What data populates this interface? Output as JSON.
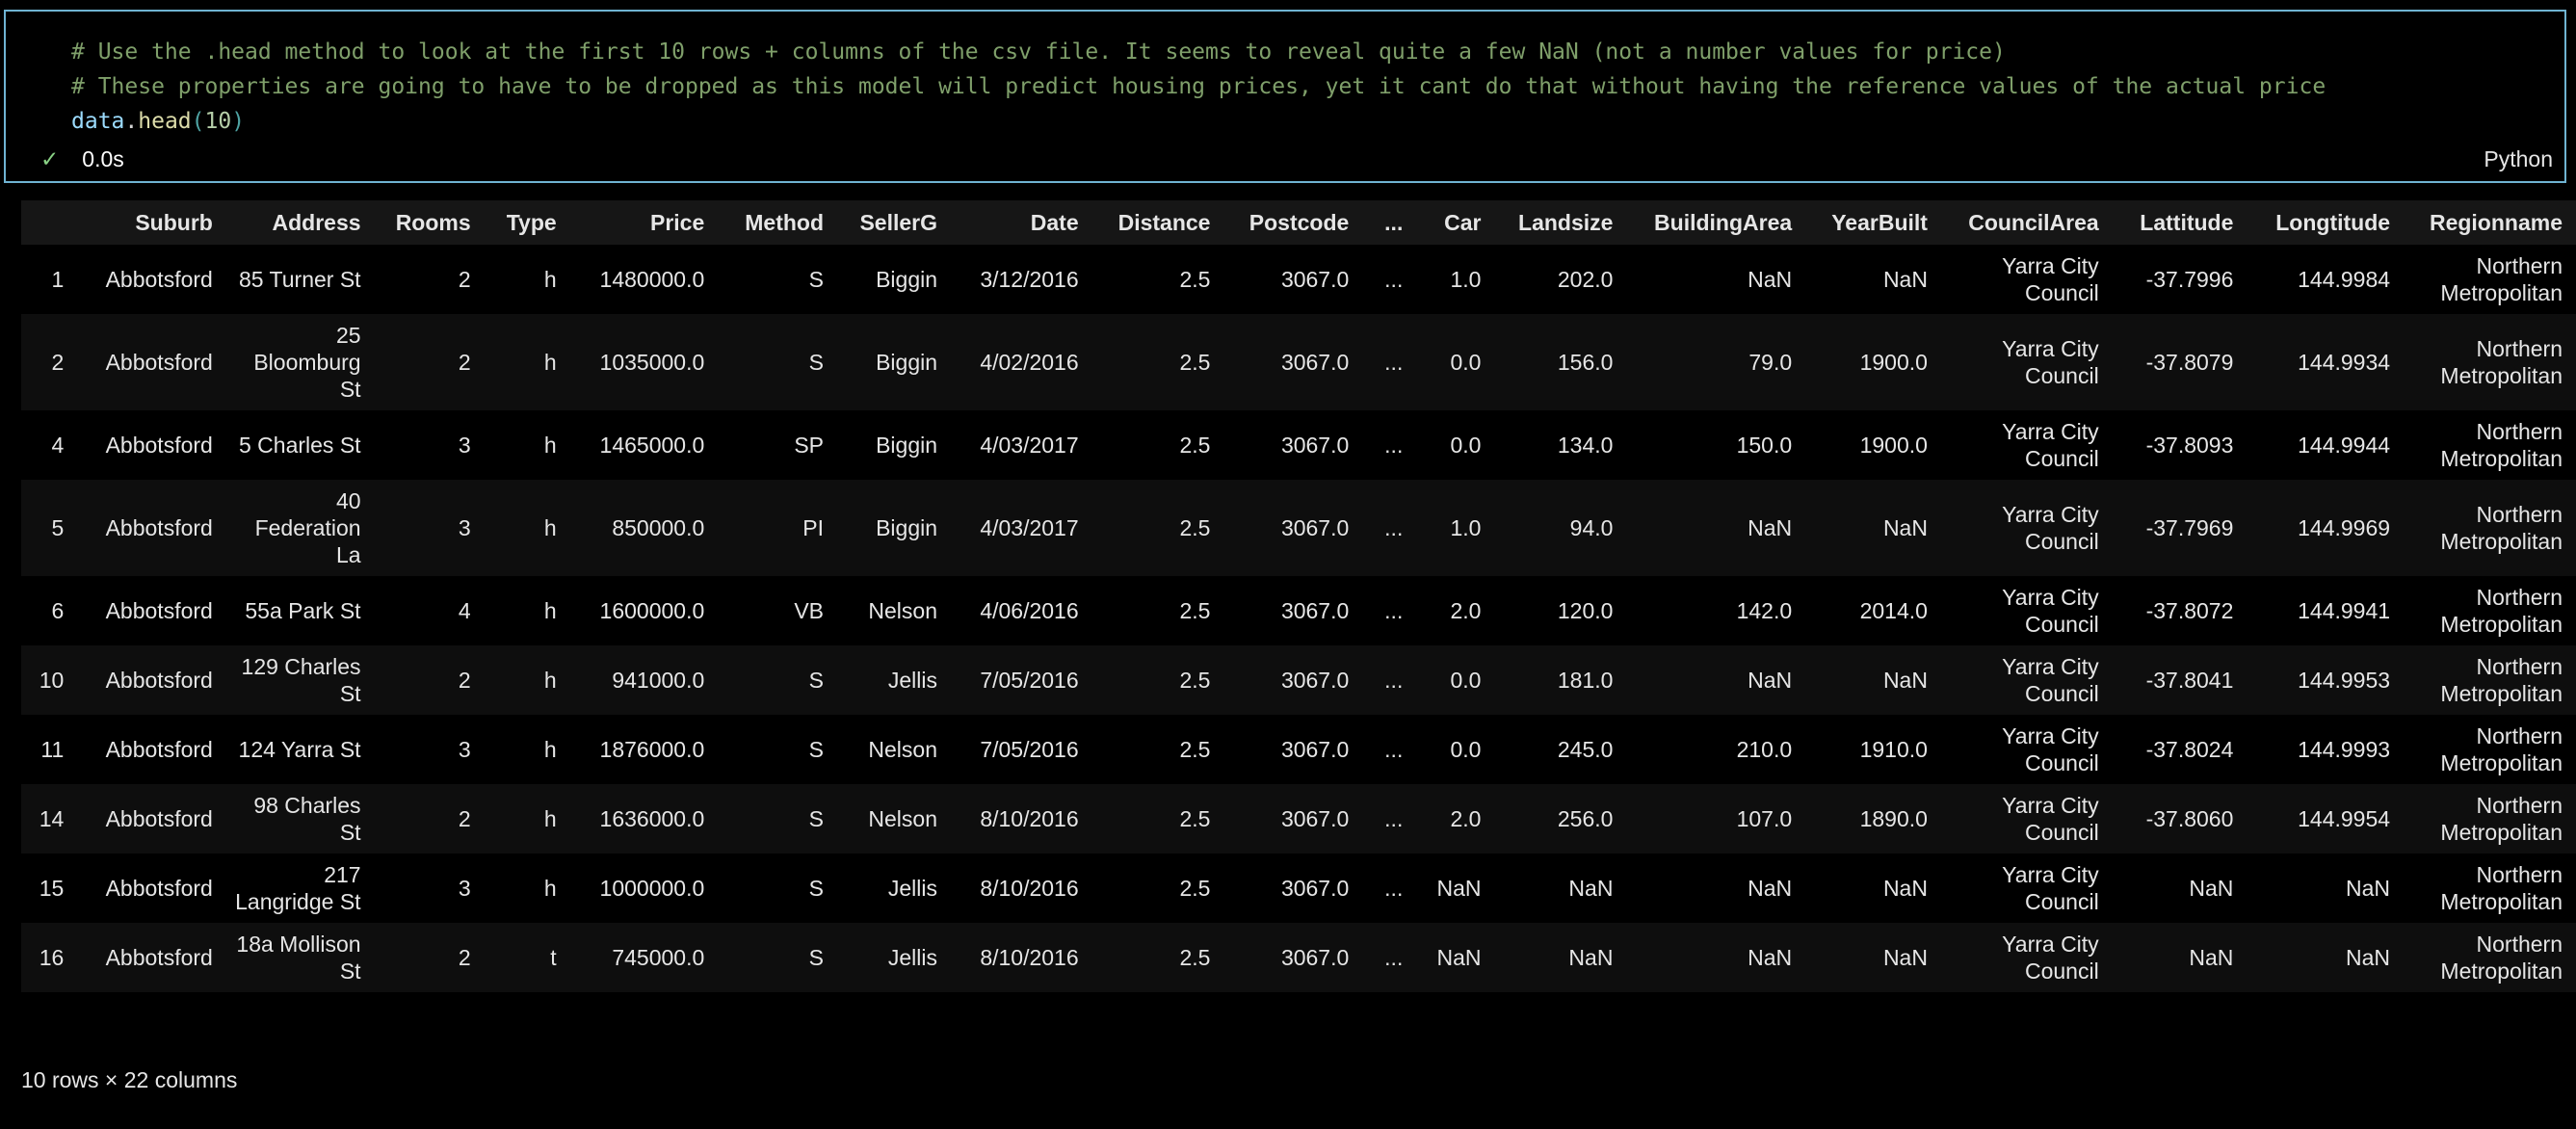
{
  "cell": {
    "code_lines": [
      "# Use the .head method to look at the first 10 rows + columns of the csv file. It seems to reveal quite a few NaN (not a number values for price)",
      "# These properties are going to have to be dropped as this model will predict housing prices, yet it cant do that without having the reference values of the actual price"
    ],
    "code_var": "data",
    "code_dot": ".",
    "code_fn": "head",
    "code_open": "(",
    "code_arg": "10",
    "code_close": ")",
    "status_icon": "check-icon",
    "status_check": "✓",
    "exec_time": "0.0s",
    "language": "Python",
    "border_color": "#6fb3d2"
  },
  "table": {
    "columns": [
      "",
      "Suburb",
      "Address",
      "Rooms",
      "Type",
      "Price",
      "Method",
      "SellerG",
      "Date",
      "Distance",
      "Postcode",
      "...",
      "Car",
      "Landsize",
      "BuildingArea",
      "YearBuilt",
      "CouncilArea",
      "Lattitude",
      "Longtitude",
      "Regionname"
    ],
    "rows": [
      [
        "1",
        "Abbotsford",
        "85 Turner St",
        "2",
        "h",
        "1480000.0",
        "S",
        "Biggin",
        "3/12/2016",
        "2.5",
        "3067.0",
        "...",
        "1.0",
        "202.0",
        "NaN",
        "NaN",
        "Yarra City Council",
        "-37.7996",
        "144.9984",
        "Northern Metropolitan"
      ],
      [
        "2",
        "Abbotsford",
        "25 Bloomburg St",
        "2",
        "h",
        "1035000.0",
        "S",
        "Biggin",
        "4/02/2016",
        "2.5",
        "3067.0",
        "...",
        "0.0",
        "156.0",
        "79.0",
        "1900.0",
        "Yarra City Council",
        "-37.8079",
        "144.9934",
        "Northern Metropolitan"
      ],
      [
        "4",
        "Abbotsford",
        "5 Charles St",
        "3",
        "h",
        "1465000.0",
        "SP",
        "Biggin",
        "4/03/2017",
        "2.5",
        "3067.0",
        "...",
        "0.0",
        "134.0",
        "150.0",
        "1900.0",
        "Yarra City Council",
        "-37.8093",
        "144.9944",
        "Northern Metropolitan"
      ],
      [
        "5",
        "Abbotsford",
        "40 Federation La",
        "3",
        "h",
        "850000.0",
        "PI",
        "Biggin",
        "4/03/2017",
        "2.5",
        "3067.0",
        "...",
        "1.0",
        "94.0",
        "NaN",
        "NaN",
        "Yarra City Council",
        "-37.7969",
        "144.9969",
        "Northern Metropolitan"
      ],
      [
        "6",
        "Abbotsford",
        "55a Park St",
        "4",
        "h",
        "1600000.0",
        "VB",
        "Nelson",
        "4/06/2016",
        "2.5",
        "3067.0",
        "...",
        "2.0",
        "120.0",
        "142.0",
        "2014.0",
        "Yarra City Council",
        "-37.8072",
        "144.9941",
        "Northern Metropolitan"
      ],
      [
        "10",
        "Abbotsford",
        "129 Charles St",
        "2",
        "h",
        "941000.0",
        "S",
        "Jellis",
        "7/05/2016",
        "2.5",
        "3067.0",
        "...",
        "0.0",
        "181.0",
        "NaN",
        "NaN",
        "Yarra City Council",
        "-37.8041",
        "144.9953",
        "Northern Metropolitan"
      ],
      [
        "11",
        "Abbotsford",
        "124 Yarra St",
        "3",
        "h",
        "1876000.0",
        "S",
        "Nelson",
        "7/05/2016",
        "2.5",
        "3067.0",
        "...",
        "0.0",
        "245.0",
        "210.0",
        "1910.0",
        "Yarra City Council",
        "-37.8024",
        "144.9993",
        "Northern Metropolitan"
      ],
      [
        "14",
        "Abbotsford",
        "98 Charles St",
        "2",
        "h",
        "1636000.0",
        "S",
        "Nelson",
        "8/10/2016",
        "2.5",
        "3067.0",
        "...",
        "2.0",
        "256.0",
        "107.0",
        "1890.0",
        "Yarra City Council",
        "-37.8060",
        "144.9954",
        "Northern Metropolitan"
      ],
      [
        "15",
        "Abbotsford",
        "217 Langridge St",
        "3",
        "h",
        "1000000.0",
        "S",
        "Jellis",
        "8/10/2016",
        "2.5",
        "3067.0",
        "...",
        "NaN",
        "NaN",
        "NaN",
        "NaN",
        "Yarra City Council",
        "NaN",
        "NaN",
        "Northern Metropolitan"
      ],
      [
        "16",
        "Abbotsford",
        "18a Mollison St",
        "2",
        "t",
        "745000.0",
        "S",
        "Jellis",
        "8/10/2016",
        "2.5",
        "3067.0",
        "...",
        "NaN",
        "NaN",
        "NaN",
        "NaN",
        "Yarra City Council",
        "NaN",
        "NaN",
        "Northern Metropolitan"
      ]
    ],
    "shape": "10 rows × 22 columns"
  }
}
